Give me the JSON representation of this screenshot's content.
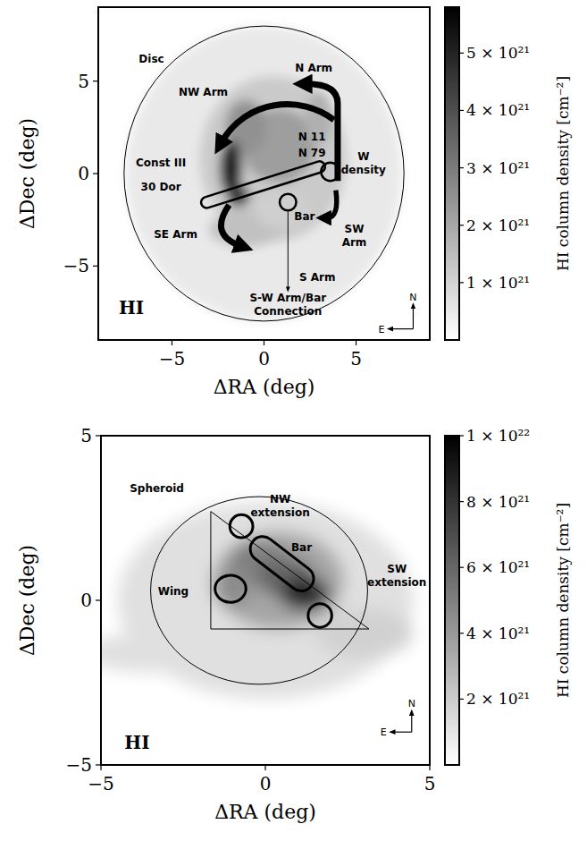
{
  "chart_data": [
    {
      "type": "heatmap",
      "xlabel": "ΔRA (deg)",
      "ylabel": "ΔDec (deg)",
      "xlim": [
        -9,
        9
      ],
      "ylim": [
        -9,
        9
      ],
      "xticks": [
        {
          "value": -5,
          "label": "−5"
        },
        0,
        5
      ],
      "yticks": [
        {
          "value": -5,
          "label": "−5"
        },
        0,
        5
      ],
      "panel_label": "HI",
      "compass": {
        "north": "N",
        "east": "E"
      },
      "annotations": [
        "Disc",
        "N Arm",
        "NW Arm",
        "N 11",
        "N 79",
        "W density",
        "Const III",
        "30 Dor",
        "Bar",
        "SW Arm",
        "SE Arm",
        "S Arm",
        "S-W Arm/Bar Connection"
      ],
      "emission": [
        {
          "ra": 0,
          "dec": 0,
          "width": 15,
          "height": 16,
          "value": 5e+20
        },
        {
          "ra": 0.5,
          "dec": 0.8,
          "width": 8,
          "height": 9,
          "value": 1.2e+21
        },
        {
          "ra": 0.8,
          "dec": 1.5,
          "width": 4,
          "height": 4,
          "value": 2.2e+21
        },
        {
          "ra": -1,
          "dec": 2.5,
          "width": 2.2,
          "height": 3,
          "value": 2.5e+21
        },
        {
          "ra": 3,
          "dec": 3,
          "width": 1.5,
          "height": 3,
          "value": 1.8e+21
        },
        {
          "ra": -1,
          "dec": -3,
          "width": 4,
          "height": 2,
          "value": 1.4e+21
        },
        {
          "ra": 1,
          "dec": -2,
          "width": 3,
          "height": 2,
          "value": 1.1e+21
        },
        {
          "ra": -1.8,
          "dec": 0.3,
          "width": 1.2,
          "height": 3,
          "value": 5e+21
        },
        {
          "ra": -1.4,
          "dec": -1.2,
          "width": 1.2,
          "height": 1.2,
          "value": 4.5e+21
        }
      ],
      "colorbar": {
        "label": "HI column density [cm⁻²]",
        "range": [
          0,
          5.8e+21
        ],
        "ticks": [
          {
            "value": 1e+21,
            "label": "1 × 10²¹"
          },
          {
            "value": 2e+21,
            "label": "2 × 10²¹"
          },
          {
            "value": 3e+21,
            "label": "3 × 10²¹"
          },
          {
            "value": 4e+21,
            "label": "4 × 10²¹"
          },
          {
            "value": 5e+21,
            "label": "5 × 10²¹"
          }
        ]
      }
    },
    {
      "type": "heatmap",
      "xlabel": "ΔRA (deg)",
      "ylabel": "ΔDec (deg)",
      "xlim": [
        -5,
        5
      ],
      "ylim": [
        -5,
        5
      ],
      "xticks": [
        {
          "value": -5,
          "label": "−5"
        },
        0,
        5
      ],
      "yticks": [
        {
          "value": -5,
          "label": "−5"
        },
        0,
        5
      ],
      "panel_label": "HI",
      "compass": {
        "north": "N",
        "east": "E"
      },
      "annotations": [
        "Spheroid",
        "NW extension",
        "Bar",
        "SW extension",
        "Wing"
      ],
      "emission": [
        {
          "ra": 0,
          "dec": 0,
          "width": 9,
          "height": 6,
          "value": 1.2e+21
        },
        {
          "ra": -3.5,
          "dec": -1.6,
          "width": 4,
          "height": 1.2,
          "value": 1.2e+21
        },
        {
          "ra": 3,
          "dec": -1,
          "width": 3,
          "height": 1.5,
          "value": 1.8e+21
        },
        {
          "ra": 0.4,
          "dec": 0.6,
          "width": 4,
          "height": 3,
          "value": 3.5e+21
        },
        {
          "ra": -0.2,
          "dec": 1.2,
          "width": 1.8,
          "height": 1.2,
          "value": 5e+21
        },
        {
          "ra": -1,
          "dec": 0.4,
          "width": 1.2,
          "height": 1.2,
          "value": 4.5e+21
        },
        {
          "ra": 0.6,
          "dec": 0.7,
          "width": 1.8,
          "height": 1.2,
          "value": 6e+21
        },
        {
          "ra": 1.2,
          "dec": 0.2,
          "width": 1.5,
          "height": 1,
          "value": 8.5e+21
        }
      ],
      "colorbar": {
        "label": "HI column density [cm⁻²]",
        "range": [
          0,
          1e+22
        ],
        "ticks": [
          {
            "value": 2e+21,
            "label": "2 × 10²¹"
          },
          {
            "value": 4e+21,
            "label": "4 × 10²¹"
          },
          {
            "value": 6e+21,
            "label": "6 × 10²¹"
          },
          {
            "value": 8e+21,
            "label": "8 × 10²¹"
          },
          {
            "value": 1e+22,
            "label": "1 × 10²²"
          }
        ]
      }
    }
  ]
}
